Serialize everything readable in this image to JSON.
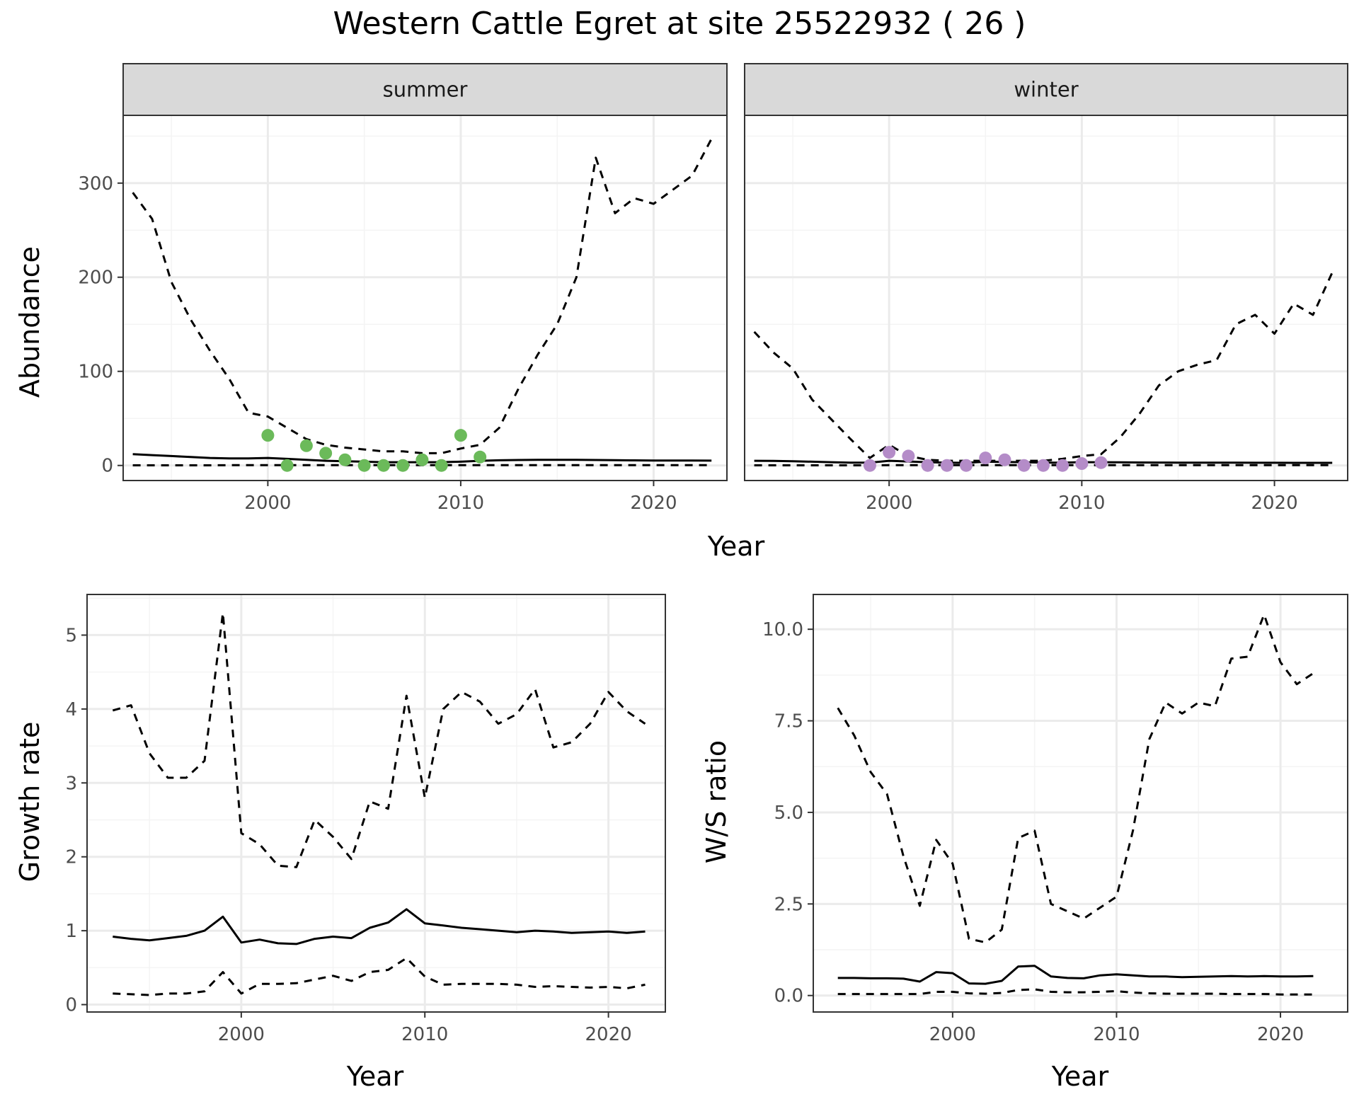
{
  "title": "Western Cattle Egret at site 25522932 ( 26 )",
  "colors": {
    "summer_points": "#6BBA5A",
    "winter_points": "#B48CC8",
    "line": "#000000",
    "panel_border": "#333333",
    "grid_major": "#EBEBEB",
    "grid_minor": "#F4F4F4",
    "strip_fill": "#D9D9D9"
  },
  "chart_data": [
    {
      "type": "line",
      "facet": "summer",
      "xlabel": "Year",
      "ylabel": "Abundance",
      "xlim": [
        1992.5,
        2023.8
      ],
      "ylim": [
        -16,
        372
      ],
      "x_ticks": [
        2000,
        2010,
        2020
      ],
      "y_ticks": [
        0,
        100,
        200,
        300
      ],
      "grid": true,
      "series": [
        {
          "role": "mean",
          "style": "solid",
          "x": [
            1993,
            1994,
            1995,
            1996,
            1997,
            1998,
            1999,
            2000,
            2001,
            2002,
            2003,
            2004,
            2005,
            2006,
            2007,
            2008,
            2009,
            2010,
            2011,
            2012,
            2013,
            2014,
            2015,
            2016,
            2017,
            2018,
            2019,
            2020,
            2021,
            2022,
            2023
          ],
          "y": [
            12,
            11,
            10,
            9,
            8,
            7.5,
            7.5,
            8,
            7,
            6,
            5,
            4.5,
            4,
            3.5,
            3.5,
            3.5,
            3.5,
            4,
            5,
            5.5,
            5.8,
            6,
            6,
            6,
            5.8,
            5.6,
            5.4,
            5.3,
            5.2,
            5.2,
            5.1
          ]
        },
        {
          "role": "upper",
          "style": "dashed",
          "x": [
            1993,
            1994,
            1995,
            1996,
            1997,
            1998,
            1999,
            2000,
            2001,
            2002,
            2003,
            2004,
            2005,
            2006,
            2007,
            2008,
            2009,
            2010,
            2011,
            2012,
            2013,
            2014,
            2015,
            2016,
            2017,
            2018,
            2019,
            2020,
            2021,
            2022,
            2023
          ],
          "y": [
            290,
            262,
            195,
            155,
            122,
            92,
            56,
            52,
            40,
            28,
            22,
            19,
            17,
            15,
            15,
            13,
            13,
            18,
            22,
            40,
            82,
            118,
            150,
            200,
            327,
            268,
            284,
            278,
            293,
            308,
            347
          ]
        },
        {
          "role": "lower",
          "style": "dashed",
          "x": [
            1993,
            1994,
            1995,
            1996,
            1997,
            1998,
            1999,
            2000,
            2001,
            2002,
            2003,
            2004,
            2005,
            2006,
            2007,
            2008,
            2009,
            2010,
            2011,
            2012,
            2013,
            2014,
            2015,
            2016,
            2017,
            2018,
            2019,
            2020,
            2021,
            2022,
            2023
          ],
          "y": [
            0.2,
            0.2,
            0.2,
            0.2,
            0.2,
            0.3,
            0.3,
            0.3,
            0.3,
            0.3,
            0.3,
            0.3,
            0.3,
            0.3,
            0.3,
            0.3,
            0.3,
            0.3,
            0.3,
            0.3,
            0.3,
            0.3,
            0.3,
            0.3,
            0.3,
            0.3,
            0.3,
            0.3,
            0.3,
            0.3,
            0.3
          ]
        }
      ],
      "points": {
        "x": [
          2000,
          2001,
          2002,
          2003,
          2004,
          2005,
          2006,
          2007,
          2008,
          2009,
          2010,
          2011
        ],
        "y": [
          32,
          0,
          21,
          13,
          6,
          0,
          0,
          0,
          6,
          0,
          32,
          9
        ]
      }
    },
    {
      "type": "line",
      "facet": "winter",
      "xlabel": "Year",
      "ylabel": "Abundance",
      "xlim": [
        1992.5,
        2023.8
      ],
      "ylim": [
        -16,
        372
      ],
      "x_ticks": [
        2000,
        2010,
        2020
      ],
      "y_ticks": [
        0,
        100,
        200,
        300
      ],
      "grid": true,
      "series": [
        {
          "role": "mean",
          "style": "solid",
          "x": [
            1993,
            1994,
            1995,
            1996,
            1997,
            1998,
            1999,
            2000,
            2001,
            2002,
            2003,
            2004,
            2005,
            2006,
            2007,
            2008,
            2009,
            2010,
            2011,
            2012,
            2013,
            2014,
            2015,
            2016,
            2017,
            2018,
            2019,
            2020,
            2021,
            2022,
            2023
          ],
          "y": [
            5,
            4.8,
            4.5,
            4,
            3.5,
            3,
            3,
            5,
            4.2,
            3.5,
            3,
            2.8,
            4,
            3.8,
            3.5,
            3,
            3,
            3.5,
            3.5,
            3.3,
            3.2,
            3.1,
            3,
            3,
            3,
            3,
            2.9,
            2.9,
            2.8,
            2.8,
            2.8
          ]
        },
        {
          "role": "upper",
          "style": "dashed",
          "x": [
            1993,
            1994,
            1995,
            1996,
            1997,
            1998,
            1999,
            2000,
            2001,
            2002,
            2003,
            2004,
            2005,
            2006,
            2007,
            2008,
            2009,
            2010,
            2011,
            2012,
            2013,
            2014,
            2015,
            2016,
            2017,
            2018,
            2019,
            2020,
            2021,
            2022,
            2023
          ],
          "y": [
            142,
            120,
            103,
            70,
            49,
            28,
            8,
            22,
            10,
            6,
            5,
            5,
            5,
            5,
            5,
            5,
            7,
            10,
            12,
            30,
            55,
            85,
            100,
            107,
            112,
            150,
            160,
            140,
            172,
            160,
            205
          ]
        },
        {
          "role": "lower",
          "style": "dashed",
          "x": [
            1993,
            1994,
            1995,
            1996,
            1997,
            1998,
            1999,
            2000,
            2001,
            2002,
            2003,
            2004,
            2005,
            2006,
            2007,
            2008,
            2009,
            2010,
            2011,
            2012,
            2013,
            2014,
            2015,
            2016,
            2017,
            2018,
            2019,
            2020,
            2021,
            2022,
            2023
          ],
          "y": [
            0.2,
            0.2,
            0.2,
            0.2,
            0.2,
            0.2,
            0.2,
            0.3,
            0.3,
            0.3,
            0.3,
            0.3,
            0.3,
            0.3,
            0.3,
            0.3,
            0.3,
            0.3,
            0.3,
            0.3,
            0.3,
            0.3,
            0.3,
            0.3,
            0.3,
            0.3,
            0.3,
            0.3,
            0.3,
            0.3,
            0.3
          ]
        }
      ],
      "points": {
        "x": [
          1999,
          2000,
          2001,
          2002,
          2003,
          2004,
          2005,
          2006,
          2007,
          2008,
          2009,
          2010,
          2011
        ],
        "y": [
          0,
          14,
          10,
          0,
          0,
          0,
          8,
          6,
          0,
          0,
          0,
          2,
          3
        ]
      }
    },
    {
      "type": "line",
      "xlabel": "Year",
      "ylabel": "Growth rate",
      "xlim": [
        1991.6,
        2023.1
      ],
      "ylim": [
        -0.1,
        5.55
      ],
      "x_ticks": [
        2000,
        2010,
        2020
      ],
      "y_ticks": [
        0,
        1,
        2,
        3,
        4,
        5
      ],
      "grid": true,
      "series": [
        {
          "role": "mean",
          "style": "solid",
          "x": [
            1993,
            1994,
            1995,
            1996,
            1997,
            1998,
            1999,
            2000,
            2001,
            2002,
            2003,
            2004,
            2005,
            2006,
            2007,
            2008,
            2009,
            2010,
            2011,
            2012,
            2013,
            2014,
            2015,
            2016,
            2017,
            2018,
            2019,
            2020,
            2021,
            2022
          ],
          "y": [
            0.92,
            0.89,
            0.87,
            0.9,
            0.93,
            1.0,
            1.19,
            0.84,
            0.88,
            0.83,
            0.82,
            0.89,
            0.92,
            0.9,
            1.04,
            1.11,
            1.29,
            1.1,
            1.07,
            1.04,
            1.02,
            1.0,
            0.98,
            1.0,
            0.99,
            0.97,
            0.98,
            0.99,
            0.97,
            0.99
          ]
        },
        {
          "role": "upper",
          "style": "dashed",
          "x": [
            1993,
            1994,
            1995,
            1996,
            1997,
            1998,
            1999,
            2000,
            2001,
            2002,
            2003,
            2004,
            2005,
            2006,
            2007,
            2008,
            2009,
            2010,
            2011,
            2012,
            2013,
            2014,
            2015,
            2016,
            2017,
            2018,
            2019,
            2020,
            2021,
            2022
          ],
          "y": [
            3.98,
            4.05,
            3.4,
            3.07,
            3.07,
            3.3,
            5.3,
            2.32,
            2.17,
            1.88,
            1.86,
            2.5,
            2.27,
            1.97,
            2.75,
            2.65,
            4.18,
            2.8,
            4.0,
            4.23,
            4.1,
            3.8,
            3.93,
            4.27,
            3.48,
            3.55,
            3.8,
            4.23,
            3.97,
            3.8
          ]
        },
        {
          "role": "lower",
          "style": "dashed",
          "x": [
            1993,
            1994,
            1995,
            1996,
            1997,
            1998,
            1999,
            2000,
            2001,
            2002,
            2003,
            2004,
            2005,
            2006,
            2007,
            2008,
            2009,
            2010,
            2011,
            2012,
            2013,
            2014,
            2015,
            2016,
            2017,
            2018,
            2019,
            2020,
            2021,
            2022
          ],
          "y": [
            0.15,
            0.14,
            0.13,
            0.15,
            0.15,
            0.18,
            0.44,
            0.15,
            0.28,
            0.28,
            0.29,
            0.34,
            0.39,
            0.32,
            0.44,
            0.47,
            0.63,
            0.38,
            0.27,
            0.28,
            0.28,
            0.28,
            0.27,
            0.24,
            0.25,
            0.24,
            0.23,
            0.24,
            0.22,
            0.27
          ]
        }
      ]
    },
    {
      "type": "line",
      "xlabel": "Year",
      "ylabel": "W/S ratio",
      "xlim": [
        1991.5,
        2024.1
      ],
      "ylim": [
        -0.45,
        10.95
      ],
      "x_ticks": [
        2000,
        2010,
        2020
      ],
      "y_ticks": [
        0.0,
        2.5,
        5.0,
        7.5,
        10.0
      ],
      "y_tick_labels": [
        "0.0",
        "2.5",
        "5.0",
        "7.5",
        "10.0"
      ],
      "grid": true,
      "series": [
        {
          "role": "mean",
          "style": "solid",
          "x": [
            1993,
            1994,
            1995,
            1996,
            1997,
            1998,
            1999,
            2000,
            2001,
            2002,
            2003,
            2004,
            2005,
            2006,
            2007,
            2008,
            2009,
            2010,
            2011,
            2012,
            2013,
            2014,
            2015,
            2016,
            2017,
            2018,
            2019,
            2020,
            2021,
            2022
          ],
          "y": [
            0.48,
            0.48,
            0.47,
            0.47,
            0.46,
            0.38,
            0.64,
            0.61,
            0.33,
            0.32,
            0.4,
            0.79,
            0.81,
            0.52,
            0.48,
            0.47,
            0.55,
            0.58,
            0.55,
            0.52,
            0.52,
            0.5,
            0.51,
            0.52,
            0.53,
            0.52,
            0.53,
            0.52,
            0.52,
            0.53
          ]
        },
        {
          "role": "upper",
          "style": "dashed",
          "x": [
            1993,
            1994,
            1995,
            1996,
            1997,
            1998,
            1999,
            2000,
            2001,
            2002,
            2003,
            2004,
            2005,
            2006,
            2007,
            2008,
            2009,
            2010,
            2011,
            2012,
            2013,
            2014,
            2015,
            2016,
            2017,
            2018,
            2019,
            2020,
            2021,
            2022
          ],
          "y": [
            7.85,
            7.1,
            6.1,
            5.5,
            3.8,
            2.45,
            4.25,
            3.6,
            1.55,
            1.45,
            1.8,
            4.3,
            4.5,
            2.5,
            2.3,
            2.1,
            2.4,
            2.7,
            4.5,
            7.0,
            8.0,
            7.7,
            8.0,
            7.9,
            9.2,
            9.25,
            10.4,
            9.1,
            8.5,
            8.8
          ]
        },
        {
          "role": "lower",
          "style": "dashed",
          "x": [
            1993,
            1994,
            1995,
            1996,
            1997,
            1998,
            1999,
            2000,
            2001,
            2002,
            2003,
            2004,
            2005,
            2006,
            2007,
            2008,
            2009,
            2010,
            2011,
            2012,
            2013,
            2014,
            2015,
            2016,
            2017,
            2018,
            2019,
            2020,
            2021,
            2022
          ],
          "y": [
            0.04,
            0.04,
            0.04,
            0.04,
            0.04,
            0.04,
            0.1,
            0.1,
            0.06,
            0.05,
            0.07,
            0.15,
            0.17,
            0.1,
            0.09,
            0.09,
            0.1,
            0.12,
            0.08,
            0.06,
            0.05,
            0.05,
            0.05,
            0.05,
            0.04,
            0.04,
            0.04,
            0.03,
            0.03,
            0.03
          ]
        }
      ]
    }
  ]
}
